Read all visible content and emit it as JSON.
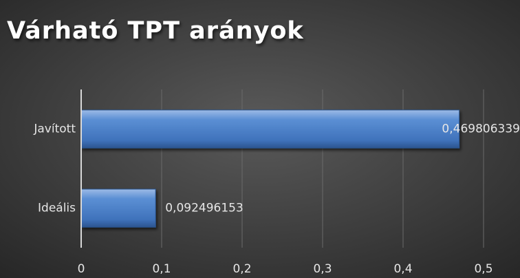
{
  "chart_data": {
    "type": "bar",
    "orientation": "horizontal",
    "title": "Várható TPT arányok",
    "categories": [
      "Javított",
      "Ideális"
    ],
    "values": [
      0.469806339,
      0.092496153
    ],
    "value_labels": [
      "0,469806339",
      "0,092496153"
    ],
    "color": "#4f81bd",
    "xlim": [
      0,
      0.5
    ],
    "xticks": [
      0,
      {
        "value": 0.1,
        "label": "0,1"
      },
      {
        "value": 0.2,
        "label": "0,2"
      },
      {
        "value": 0.3,
        "label": "0,3"
      },
      {
        "value": 0.4,
        "label": "0,4"
      },
      {
        "value": 0.5,
        "label": "0,5"
      }
    ],
    "grid": true
  }
}
